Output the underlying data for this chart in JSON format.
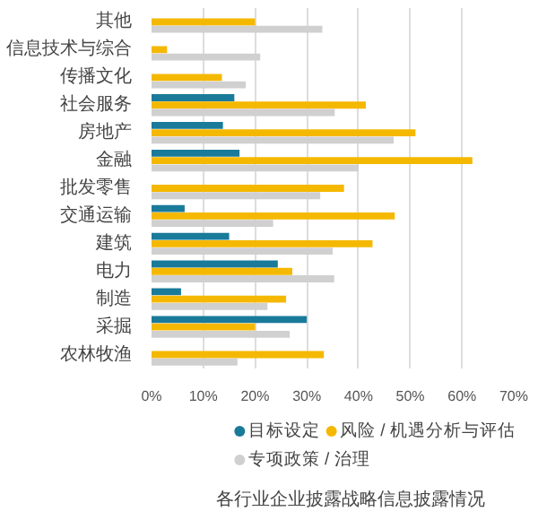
{
  "chart_data": {
    "type": "bar",
    "orientation": "horizontal",
    "title": "各行业企业披露战略信息披露情况",
    "categories": [
      "其他",
      "信息技术与综合",
      "传播文化",
      "社会服务",
      "房地产",
      "金融",
      "批发零售",
      "交通运输",
      "建筑",
      "电力",
      "制造",
      "采掘",
      "农林牧渔"
    ],
    "series": [
      {
        "name": "目标设定",
        "color": "#1a7a9a",
        "values": [
          null,
          null,
          null,
          16,
          13.8,
          17,
          null,
          6.4,
          15,
          24.4,
          5.7,
          30,
          null
        ]
      },
      {
        "name": "风险 / 机遇分析与评估",
        "color": "#f5b800",
        "values": [
          20,
          3,
          13.6,
          41.4,
          51,
          62,
          37.2,
          47,
          42.7,
          27.2,
          26,
          20,
          33.3
        ]
      },
      {
        "name": "专项政策 / 治理",
        "color": "#d0d0d0",
        "values": [
          33,
          21,
          18.2,
          35.4,
          46.8,
          40,
          32.6,
          23.5,
          35,
          35.3,
          22.4,
          26.7,
          16.6
        ]
      }
    ],
    "xlim": [
      0,
      70
    ],
    "xticks": [
      {
        "value": 0,
        "label": "0%"
      },
      {
        "value": 10,
        "label": "10%"
      },
      {
        "value": 20,
        "label": "20%"
      },
      {
        "value": 30,
        "label": "30%"
      },
      {
        "value": 40,
        "label": "40%"
      },
      {
        "value": 50,
        "label": "50%"
      },
      {
        "value": 60,
        "label": "60%"
      },
      {
        "value": 70,
        "label": "70%"
      }
    ],
    "grid": "x",
    "legend": "bottom"
  }
}
